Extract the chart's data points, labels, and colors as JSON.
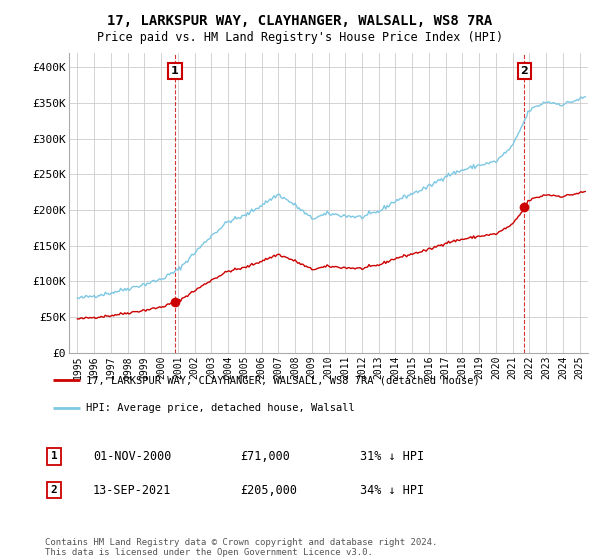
{
  "title": "17, LARKSPUR WAY, CLAYHANGER, WALSALL, WS8 7RA",
  "subtitle": "Price paid vs. HM Land Registry's House Price Index (HPI)",
  "legend_line1": "17, LARKSPUR WAY, CLAYHANGER, WALSALL, WS8 7RA (detached house)",
  "legend_line2": "HPI: Average price, detached house, Walsall",
  "sale1_date": "01-NOV-2000",
  "sale1_price": "£71,000",
  "sale1_hpi": "31% ↓ HPI",
  "sale1_x": 2000.83,
  "sale1_y": 71000,
  "sale2_date": "13-SEP-2021",
  "sale2_price": "£205,000",
  "sale2_hpi": "34% ↓ HPI",
  "sale2_x": 2021.7,
  "sale2_y": 205000,
  "hpi_color": "#7ec8e3",
  "sale_color": "#cc0000",
  "marker_color": "#cc0000",
  "background_color": "#ffffff",
  "grid_color": "#cccccc",
  "ylim": [
    0,
    420000
  ],
  "xlim": [
    1994.5,
    2025.5
  ],
  "yticks": [
    0,
    50000,
    100000,
    150000,
    200000,
    250000,
    300000,
    350000,
    400000
  ],
  "xticks": [
    1995,
    1996,
    1997,
    1998,
    1999,
    2000,
    2001,
    2002,
    2003,
    2004,
    2005,
    2006,
    2007,
    2008,
    2009,
    2010,
    2011,
    2012,
    2013,
    2014,
    2015,
    2016,
    2017,
    2018,
    2019,
    2020,
    2021,
    2022,
    2023,
    2024,
    2025
  ],
  "footer": "Contains HM Land Registry data © Crown copyright and database right 2024.\nThis data is licensed under the Open Government Licence v3.0."
}
